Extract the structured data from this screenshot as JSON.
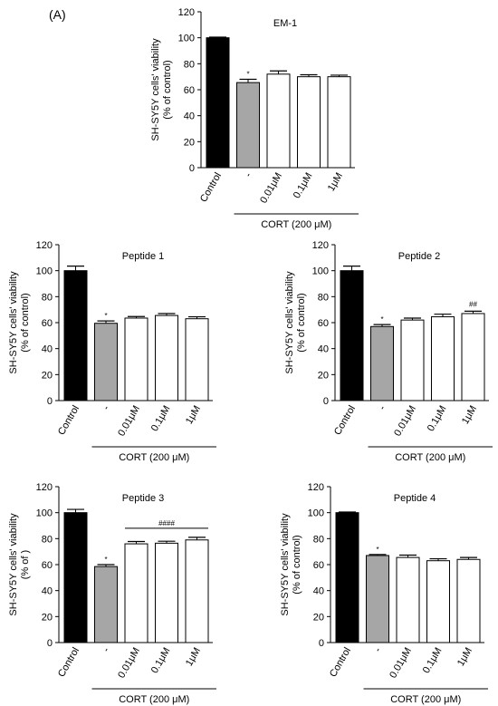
{
  "figure": {
    "panel_label": "(A)"
  },
  "chart_data": [
    {
      "type": "bar",
      "title": "EM-1",
      "ylabel_lines": [
        "SH-SY5Y cells' viability",
        "(% of control)"
      ],
      "categories": [
        "Control",
        "-",
        "0.01μM",
        "0.1μM",
        "1μM"
      ],
      "values": [
        100,
        65.5,
        72,
        70,
        70
      ],
      "errors": [
        0.5,
        2.5,
        2.5,
        1.5,
        1.2
      ],
      "bar_colors": [
        "#000000",
        "#a6a6a6",
        "#ffffff",
        "#ffffff",
        "#ffffff"
      ],
      "ylim": [
        0,
        120
      ],
      "yticks": [
        0,
        20,
        40,
        60,
        80,
        100,
        120
      ],
      "group_label": "CORT (200 μM)",
      "annotations": [
        {
          "bar": 1,
          "text": "*"
        }
      ]
    },
    {
      "type": "bar",
      "title": "Peptide 1",
      "ylabel_lines": [
        "SH-SY5Y cells' viability",
        "(% of control)"
      ],
      "categories": [
        "Control",
        "-",
        "0.01μM",
        "0.1μM",
        "1μM"
      ],
      "values": [
        100,
        59.5,
        63.5,
        65.5,
        63
      ],
      "errors": [
        3.5,
        1.8,
        1.2,
        1.5,
        1.5
      ],
      "bar_colors": [
        "#000000",
        "#a6a6a6",
        "#ffffff",
        "#ffffff",
        "#ffffff"
      ],
      "ylim": [
        0,
        120
      ],
      "yticks": [
        0,
        20,
        40,
        60,
        80,
        100,
        120
      ],
      "group_label": "CORT (200 μM)",
      "annotations": [
        {
          "bar": 1,
          "text": "*"
        }
      ]
    },
    {
      "type": "bar",
      "title": "Peptide 2",
      "ylabel_lines": [
        "SH-SY5Y cells' viability",
        "(% of control)"
      ],
      "categories": [
        "Control",
        "-",
        "0.01μM",
        "0.1μM",
        "1μM"
      ],
      "values": [
        100,
        57,
        62,
        64.5,
        67
      ],
      "errors": [
        3.5,
        1.5,
        1.5,
        2,
        1.8
      ],
      "bar_colors": [
        "#000000",
        "#a6a6a6",
        "#ffffff",
        "#ffffff",
        "#ffffff"
      ],
      "ylim": [
        0,
        120
      ],
      "yticks": [
        0,
        20,
        40,
        60,
        80,
        100,
        120
      ],
      "group_label": "CORT (200 μM)",
      "annotations": [
        {
          "bar": 1,
          "text": "*"
        },
        {
          "bar": 4,
          "text": "##"
        }
      ]
    },
    {
      "type": "bar",
      "title": "Peptide 3",
      "ylabel_lines": [
        "SH-SY5Y cells' viability",
        "(% of )"
      ],
      "categories": [
        "Control",
        "-",
        "0.01μM",
        "0.1μM",
        "1μM"
      ],
      "values": [
        100,
        58.5,
        76,
        76.5,
        79
      ],
      "errors": [
        2.5,
        1.5,
        1.8,
        1.5,
        2
      ],
      "bar_colors": [
        "#000000",
        "#a6a6a6",
        "#ffffff",
        "#ffffff",
        "#ffffff"
      ],
      "ylim": [
        0,
        120
      ],
      "yticks": [
        0,
        20,
        40,
        60,
        80,
        100,
        120
      ],
      "group_label": "CORT (200 μM)",
      "annotations": [
        {
          "bar": 1,
          "text": "*"
        }
      ],
      "bracket": {
        "from_bar": 2,
        "to_bar": 4,
        "text": "####"
      }
    },
    {
      "type": "bar",
      "title": "Peptide 4",
      "ylabel_lines": [
        "SH-SY5Y cells' viability",
        "(% of control)"
      ],
      "categories": [
        "Control",
        "-",
        "0.01μM",
        "0.1μM",
        "1μM"
      ],
      "values": [
        100,
        67,
        65.5,
        63,
        64
      ],
      "errors": [
        0.5,
        0.8,
        1.8,
        1.5,
        1.5
      ],
      "bar_colors": [
        "#000000",
        "#a6a6a6",
        "#ffffff",
        "#ffffff",
        "#ffffff"
      ],
      "ylim": [
        0,
        120
      ],
      "yticks": [
        0,
        20,
        40,
        60,
        80,
        100,
        120
      ],
      "group_label": "CORT (200 μM)",
      "annotations": [
        {
          "bar": 1,
          "text": "*"
        }
      ]
    }
  ]
}
